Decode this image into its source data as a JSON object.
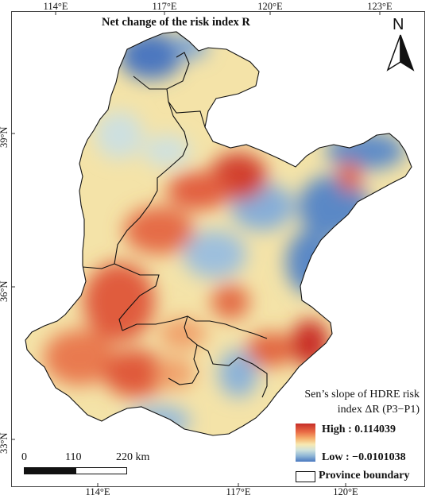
{
  "title": "Net change of the risk index R",
  "north_label": "N",
  "lon_ticks_top": [
    "114°E",
    "117°E",
    "120°E",
    "123°E"
  ],
  "lon_ticks_bottom": [
    "114°E",
    "117°E",
    "120°E"
  ],
  "lat_ticks": [
    "39°N",
    "36°N",
    "33°N"
  ],
  "legend": {
    "title_line1": "Sen’s slope of HDRE risk",
    "title_line2": "index ΔR (P3−P1)",
    "high_label": "High : 0.114039",
    "low_label": "Low : −0.0101038",
    "boundary_label": "Province boundary",
    "colors": {
      "high": "#c62d28",
      "mid": "#f7e9b2",
      "low": "#4a78bf"
    }
  },
  "scale": {
    "labels": [
      "0",
      "110",
      "220 km"
    ]
  }
}
